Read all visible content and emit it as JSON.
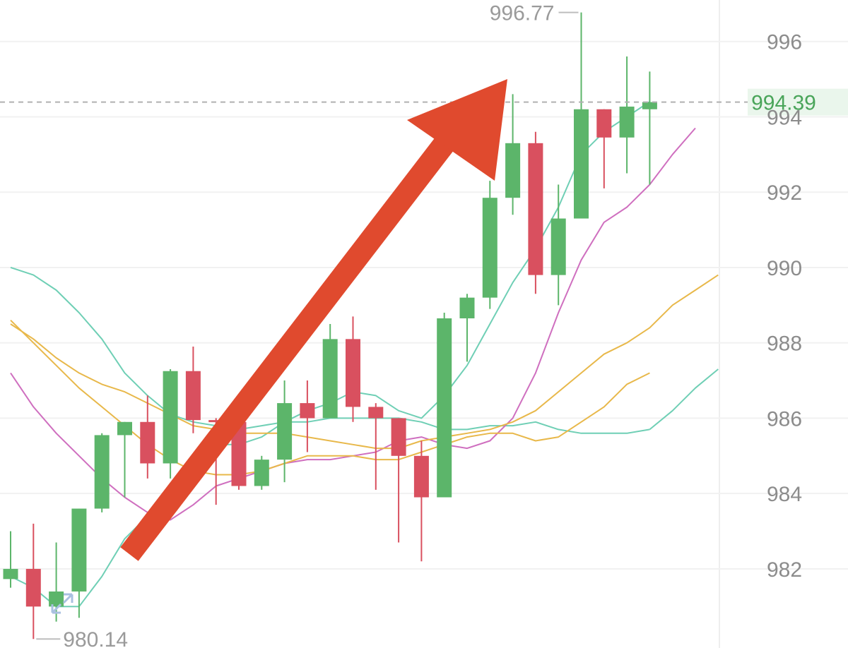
{
  "chart_data": {
    "type": "candlestick",
    "ylim": [
      979.9,
      997.1
    ],
    "y_ticks": [
      {
        "value": 982,
        "label": "982"
      },
      {
        "value": 984,
        "label": "984"
      },
      {
        "value": 986,
        "label": "986"
      },
      {
        "value": 988,
        "label": "988"
      },
      {
        "value": 990,
        "label": "990"
      },
      {
        "value": 992,
        "label": "992"
      },
      {
        "value": 994,
        "label": "994"
      },
      {
        "value": 996,
        "label": "996"
      }
    ],
    "grid": true,
    "current_price": {
      "value": 994.39,
      "label": "994.39"
    },
    "high_marker": {
      "value": 996.77,
      "label": "996.77"
    },
    "low_marker": {
      "value": 980.14,
      "label": "980.14"
    },
    "candles": [
      {
        "o": 981.73,
        "h": 983.0,
        "l": 981.5,
        "c": 982.0
      },
      {
        "o": 982.0,
        "h": 983.2,
        "l": 980.14,
        "c": 981.0
      },
      {
        "o": 981.0,
        "h": 982.7,
        "l": 980.6,
        "c": 981.4
      },
      {
        "o": 981.4,
        "h": 983.6,
        "l": 980.7,
        "c": 983.6
      },
      {
        "o": 983.6,
        "h": 985.6,
        "l": 983.5,
        "c": 985.55
      },
      {
        "o": 985.55,
        "h": 985.9,
        "l": 983.9,
        "c": 985.9
      },
      {
        "o": 985.9,
        "h": 986.6,
        "l": 984.4,
        "c": 984.8
      },
      {
        "o": 984.8,
        "h": 987.3,
        "l": 984.4,
        "c": 987.25
      },
      {
        "o": 987.25,
        "h": 987.9,
        "l": 985.6,
        "c": 985.95
      },
      {
        "o": 985.95,
        "h": 986.0,
        "l": 983.7,
        "c": 985.9
      },
      {
        "o": 985.9,
        "h": 986.0,
        "l": 984.1,
        "c": 984.2
      },
      {
        "o": 984.2,
        "h": 985.0,
        "l": 984.1,
        "c": 984.9
      },
      {
        "o": 984.9,
        "h": 987.0,
        "l": 984.3,
        "c": 986.4
      },
      {
        "o": 986.4,
        "h": 987.0,
        "l": 985.1,
        "c": 986.0
      },
      {
        "o": 986.0,
        "h": 988.5,
        "l": 986.0,
        "c": 988.1
      },
      {
        "o": 988.1,
        "h": 988.7,
        "l": 985.9,
        "c": 986.3
      },
      {
        "o": 986.3,
        "h": 986.4,
        "l": 984.1,
        "c": 986.0
      },
      {
        "o": 986.0,
        "h": 986.0,
        "l": 982.7,
        "c": 985.0
      },
      {
        "o": 985.0,
        "h": 985.4,
        "l": 982.2,
        "c": 983.9
      },
      {
        "o": 983.9,
        "h": 988.8,
        "l": 983.9,
        "c": 988.65
      },
      {
        "o": 988.65,
        "h": 989.3,
        "l": 987.5,
        "c": 989.2
      },
      {
        "o": 989.2,
        "h": 992.3,
        "l": 988.9,
        "c": 991.85
      },
      {
        "o": 991.85,
        "h": 994.6,
        "l": 991.4,
        "c": 993.3
      },
      {
        "o": 993.3,
        "h": 993.6,
        "l": 989.3,
        "c": 989.8
      },
      {
        "o": 989.8,
        "h": 992.2,
        "l": 989.0,
        "c": 991.3
      },
      {
        "o": 991.3,
        "h": 996.77,
        "l": 991.3,
        "c": 994.2
      },
      {
        "o": 994.2,
        "h": 994.2,
        "l": 992.1,
        "c": 993.45
      },
      {
        "o": 993.45,
        "h": 995.6,
        "l": 992.5,
        "c": 994.27
      },
      {
        "o": 994.2,
        "h": 995.2,
        "l": 992.2,
        "c": 994.39
      }
    ],
    "series": [
      {
        "color": "#6fcfb5",
        "x": [
          0,
          1,
          2,
          3,
          4,
          5,
          6,
          7,
          8,
          9,
          10,
          11,
          12,
          13,
          14,
          15,
          16,
          17,
          18,
          19,
          20,
          21,
          22,
          23,
          24,
          25,
          26,
          27,
          28
        ],
        "values": [
          981.8,
          981.5,
          981.0,
          981.0,
          981.8,
          982.8,
          983.4,
          984.0,
          984.8,
          985.3,
          985.3,
          985.5,
          985.9,
          986.2,
          986.4,
          986.7,
          986.6,
          986.2,
          986.0,
          986.6,
          987.4,
          988.5,
          989.6,
          990.5,
          991.6,
          993.0,
          993.6,
          994.0,
          994.4
        ]
      },
      {
        "color": "#6fcfb5",
        "x": [
          0,
          1,
          2,
          3,
          4,
          5,
          6,
          7,
          8,
          9,
          10,
          11,
          12,
          13,
          14,
          15,
          16,
          17,
          18,
          19,
          20,
          21,
          22,
          23,
          24,
          25,
          26,
          27,
          28
        ],
        "values": [
          990.0,
          989.8,
          989.4,
          988.8,
          988.1,
          987.2,
          986.6,
          986.1,
          985.9,
          985.8,
          985.7,
          985.8,
          985.9,
          985.9,
          986.0,
          986.0,
          986.0,
          986.0,
          985.9,
          985.7,
          985.7,
          985.8,
          985.8,
          985.9,
          985.7,
          985.6,
          985.6,
          985.6,
          985.7
        ]
      },
      {
        "color": "#6fcfb5",
        "x": [
          28,
          29,
          30,
          31
        ],
        "values": [
          985.7,
          986.2,
          986.8,
          987.3
        ]
      },
      {
        "color": "#cf6fbf",
        "x": [
          0,
          1,
          2,
          3,
          4,
          5,
          6,
          7,
          8,
          9,
          10,
          11,
          12,
          13,
          14,
          15,
          16,
          17,
          18,
          19,
          20,
          21,
          22,
          23,
          24,
          25,
          26,
          27,
          28,
          29,
          30
        ],
        "values": [
          987.2,
          986.3,
          985.6,
          985.0,
          984.4,
          983.9,
          983.5,
          983.3,
          983.7,
          984.2,
          984.4,
          984.6,
          984.8,
          984.9,
          984.9,
          985.0,
          985.1,
          985.4,
          985.5,
          985.3,
          985.2,
          985.4,
          986.0,
          987.2,
          988.8,
          990.2,
          991.2,
          991.6,
          992.2,
          993.0,
          993.7
        ]
      },
      {
        "color": "#e8b84a",
        "x": [
          0,
          1,
          2,
          3,
          4,
          5,
          6,
          7,
          8,
          9,
          10,
          11,
          12,
          13,
          14,
          15,
          16,
          17,
          18,
          19,
          20,
          21,
          22,
          23,
          24,
          25,
          26,
          27,
          28,
          29,
          30,
          31
        ],
        "values": [
          988.5,
          988.1,
          987.6,
          987.2,
          986.9,
          986.7,
          986.4,
          986.1,
          985.8,
          985.7,
          985.6,
          985.6,
          985.6,
          985.5,
          985.4,
          985.3,
          985.2,
          985.2,
          985.4,
          985.5,
          985.6,
          985.7,
          985.9,
          986.2,
          986.7,
          987.2,
          987.7,
          988.0,
          988.4,
          989.0,
          989.4,
          989.8
        ]
      },
      {
        "color": "#e8b84a",
        "x": [
          0,
          1,
          2,
          3,
          4,
          5,
          6,
          7,
          8,
          9,
          10,
          11,
          12,
          13,
          14,
          15,
          16,
          17,
          18,
          19,
          20,
          21,
          22,
          23,
          24,
          25,
          26,
          27,
          28
        ],
        "values": [
          988.6,
          988.0,
          987.4,
          986.8,
          986.3,
          985.8,
          985.3,
          984.9,
          984.6,
          984.5,
          984.5,
          984.6,
          984.8,
          985.0,
          985.0,
          985.0,
          984.9,
          984.9,
          985.1,
          985.3,
          985.5,
          985.6,
          985.6,
          985.4,
          985.5,
          985.9,
          986.3,
          986.9,
          987.2
        ]
      }
    ]
  }
}
